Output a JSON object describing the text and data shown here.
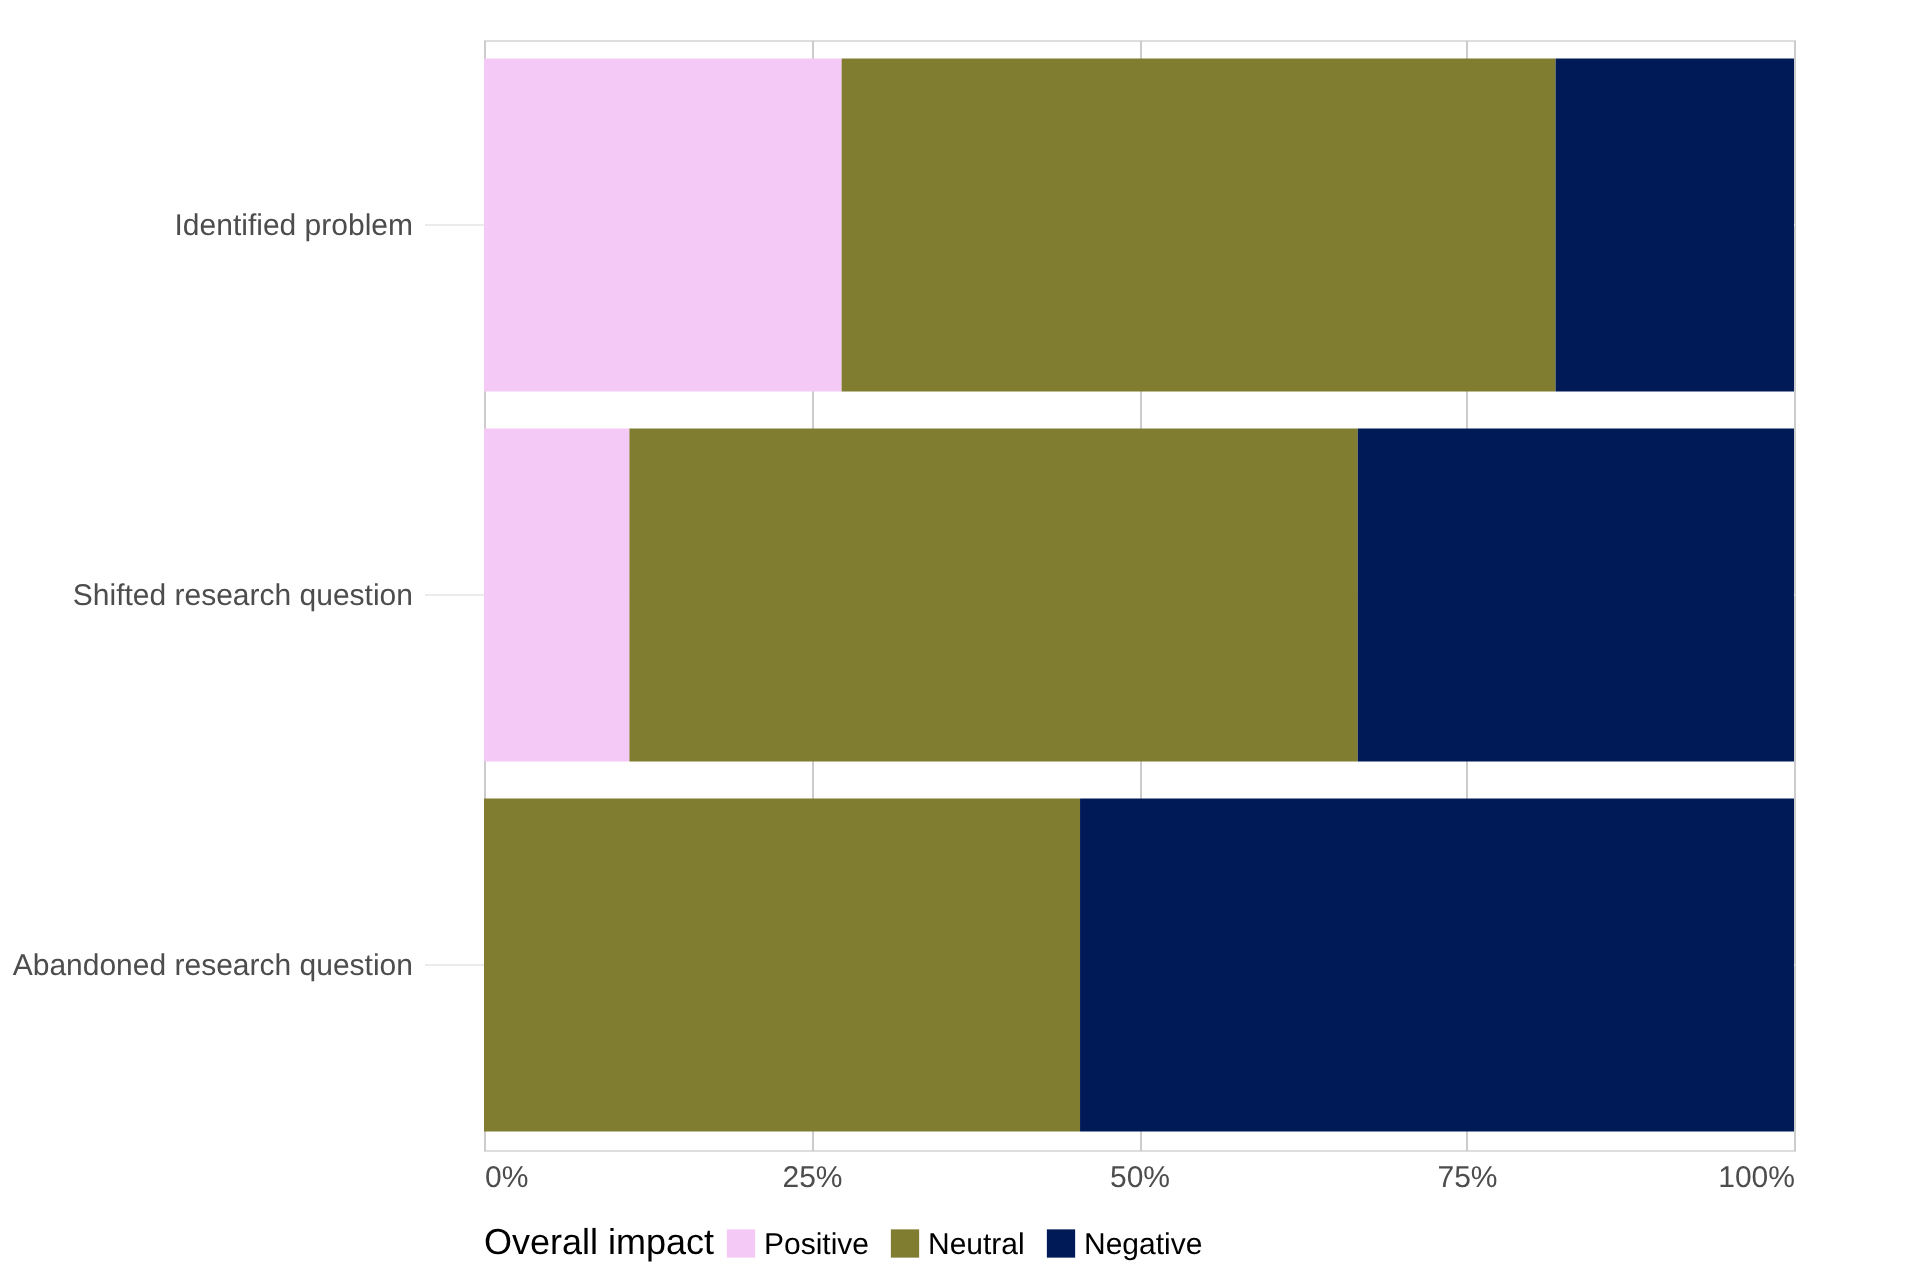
{
  "chart_data": {
    "type": "bar",
    "orientation": "horizontal",
    "stacked": true,
    "categories": [
      "Identified problem",
      "Shifted research question",
      "Abandoned research question"
    ],
    "series": [
      {
        "name": "Positive",
        "color": "#f5c9f5",
        "values": [
          27.3,
          11.1,
          0
        ]
      },
      {
        "name": "Neutral",
        "color": "#807d31",
        "values": [
          54.5,
          55.6,
          45.5
        ]
      },
      {
        "name": "Negative",
        "color": "#001a57",
        "values": [
          18.2,
          33.3,
          54.5
        ]
      }
    ],
    "xlim": [
      0,
      100
    ],
    "xticks": [
      {
        "value": 0,
        "label": "0%"
      },
      {
        "value": 25,
        "label": "25%"
      },
      {
        "value": 50,
        "label": "50%"
      },
      {
        "value": 75,
        "label": "75%"
      },
      {
        "value": 100,
        "label": "100%"
      }
    ],
    "legend_title": "Overall impact",
    "legend": "bottom",
    "grid": true
  }
}
